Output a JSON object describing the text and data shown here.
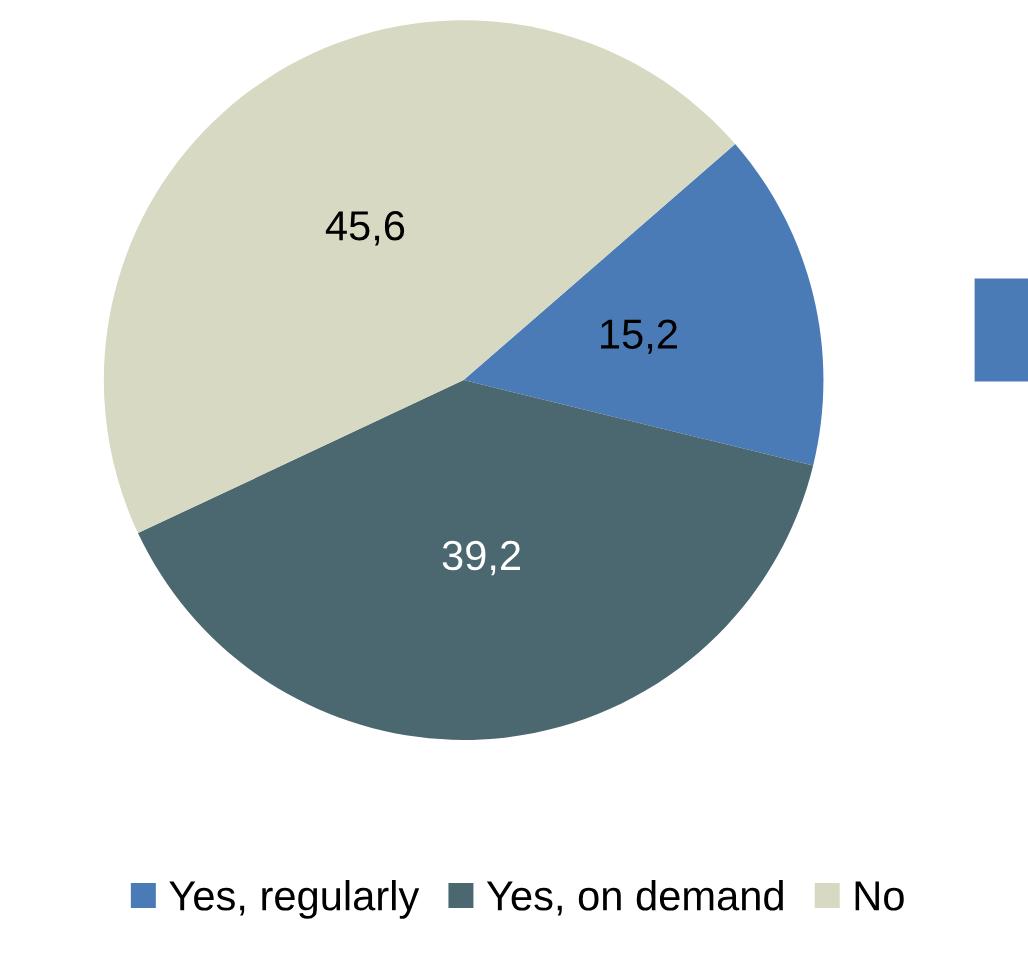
{
  "chart_data": {
    "type": "pie",
    "categories": [
      "Yes, regularly",
      "Yes, on demand",
      "No"
    ],
    "values": [
      15.2,
      39.2,
      45.6
    ],
    "colors": [
      "#4a7bb6",
      "#4b6870",
      "#d8d9c2"
    ],
    "value_labels": [
      "15,2",
      "39,2",
      "45,6"
    ],
    "legend": "bottom"
  }
}
